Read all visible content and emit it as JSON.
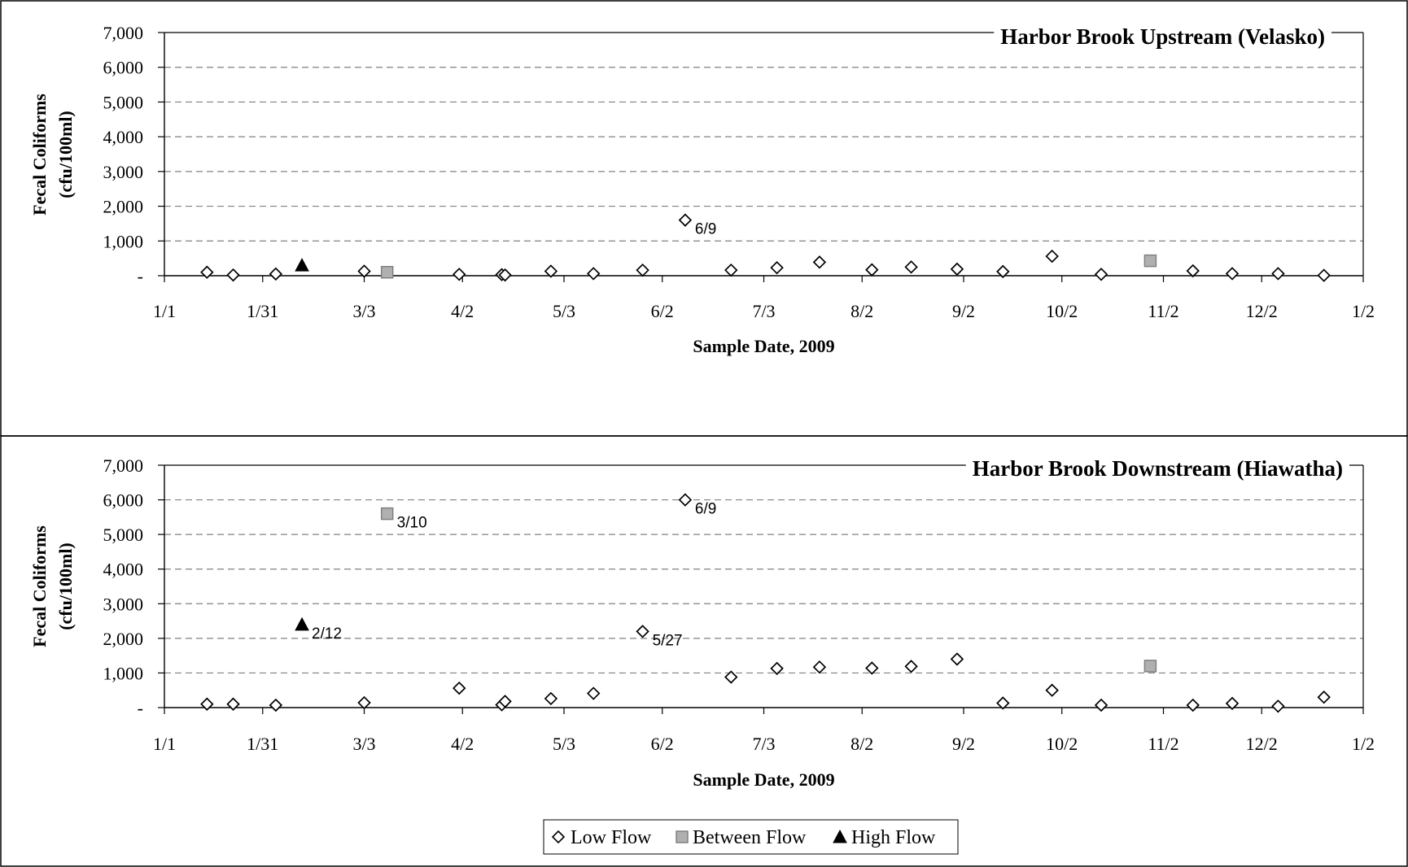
{
  "legend": [
    {
      "name": "Low Flow",
      "marker": "diamond"
    },
    {
      "name": "Between Flow",
      "marker": "square"
    },
    {
      "name": "High Flow",
      "marker": "triangle"
    }
  ],
  "colors": {
    "low": "#ffffff",
    "between": "#b0b0b0",
    "high": "#000000",
    "grid": "#808080"
  },
  "chart_data": [
    {
      "type": "scatter",
      "title": "Harbor Brook Upstream (Velasko)",
      "xlabel": "Sample Date, 2009",
      "ylabel_lines": [
        "Fecal Coliforms",
        "(cfu/100ml)"
      ],
      "xlim": [
        "2009-01-01",
        "2010-01-02"
      ],
      "ylim": [
        0,
        7000
      ],
      "yticks": [
        0,
        1000,
        2000,
        3000,
        4000,
        5000,
        6000,
        7000
      ],
      "ytick_labels": [
        "-",
        "1,000",
        "2,000",
        "3,000",
        "4,000",
        "5,000",
        "6,000",
        "7,000"
      ],
      "xticks": [
        "2009-01-01",
        "2009-01-31",
        "2009-03-03",
        "2009-04-02",
        "2009-05-03",
        "2009-06-02",
        "2009-07-03",
        "2009-08-02",
        "2009-09-02",
        "2009-10-02",
        "2009-11-02",
        "2009-12-02",
        "2010-01-02"
      ],
      "xtick_labels": [
        "1/1",
        "1/31",
        "3/3",
        "4/2",
        "5/3",
        "6/2",
        "7/3",
        "8/2",
        "9/2",
        "10/2",
        "11/2",
        "12/2",
        "1/2"
      ],
      "grid": "horizontal dashed",
      "series": [
        {
          "name": "Low Flow",
          "points": [
            {
              "x": "2009-01-14",
              "y": 100
            },
            {
              "x": "2009-01-22",
              "y": 20
            },
            {
              "x": "2009-02-04",
              "y": 50
            },
            {
              "x": "2009-03-03",
              "y": 130
            },
            {
              "x": "2009-04-01",
              "y": 40
            },
            {
              "x": "2009-04-14",
              "y": 30
            },
            {
              "x": "2009-04-15",
              "y": 20
            },
            {
              "x": "2009-04-29",
              "y": 130
            },
            {
              "x": "2009-05-12",
              "y": 60
            },
            {
              "x": "2009-05-27",
              "y": 160
            },
            {
              "x": "2009-06-09",
              "y": 1600,
              "label": "6/9"
            },
            {
              "x": "2009-06-23",
              "y": 160
            },
            {
              "x": "2009-07-07",
              "y": 230
            },
            {
              "x": "2009-07-20",
              "y": 390
            },
            {
              "x": "2009-08-05",
              "y": 170
            },
            {
              "x": "2009-08-17",
              "y": 250
            },
            {
              "x": "2009-08-31",
              "y": 190
            },
            {
              "x": "2009-09-14",
              "y": 120
            },
            {
              "x": "2009-09-29",
              "y": 560
            },
            {
              "x": "2009-10-14",
              "y": 40
            },
            {
              "x": "2009-11-11",
              "y": 140
            },
            {
              "x": "2009-11-23",
              "y": 60
            },
            {
              "x": "2009-12-07",
              "y": 60
            },
            {
              "x": "2009-12-21",
              "y": 10
            }
          ]
        },
        {
          "name": "Between Flow",
          "points": [
            {
              "x": "2009-03-10",
              "y": 100
            },
            {
              "x": "2009-10-29",
              "y": 430
            }
          ]
        },
        {
          "name": "High Flow",
          "points": [
            {
              "x": "2009-02-12",
              "y": 300
            }
          ]
        }
      ]
    },
    {
      "type": "scatter",
      "title": "Harbor Brook Downstream (Hiawatha)",
      "xlabel": "Sample Date, 2009",
      "ylabel_lines": [
        "Fecal Coliforms",
        "(cfu/100ml)"
      ],
      "xlim": [
        "2009-01-01",
        "2010-01-02"
      ],
      "ylim": [
        0,
        7000
      ],
      "yticks": [
        0,
        1000,
        2000,
        3000,
        4000,
        5000,
        6000,
        7000
      ],
      "ytick_labels": [
        "-",
        "1,000",
        "2,000",
        "3,000",
        "4,000",
        "5,000",
        "6,000",
        "7,000"
      ],
      "xticks": [
        "2009-01-01",
        "2009-01-31",
        "2009-03-03",
        "2009-04-02",
        "2009-05-03",
        "2009-06-02",
        "2009-07-03",
        "2009-08-02",
        "2009-09-02",
        "2009-10-02",
        "2009-11-02",
        "2009-12-02",
        "2010-01-02"
      ],
      "xtick_labels": [
        "1/1",
        "1/31",
        "3/3",
        "4/2",
        "5/3",
        "6/2",
        "7/3",
        "8/2",
        "9/2",
        "10/2",
        "11/2",
        "12/2",
        "1/2"
      ],
      "grid": "horizontal dashed",
      "series": [
        {
          "name": "Low Flow",
          "points": [
            {
              "x": "2009-01-14",
              "y": 100
            },
            {
              "x": "2009-01-22",
              "y": 100
            },
            {
              "x": "2009-02-04",
              "y": 70
            },
            {
              "x": "2009-03-03",
              "y": 140
            },
            {
              "x": "2009-04-01",
              "y": 560
            },
            {
              "x": "2009-04-14",
              "y": 80
            },
            {
              "x": "2009-04-15",
              "y": 180
            },
            {
              "x": "2009-04-29",
              "y": 260
            },
            {
              "x": "2009-05-12",
              "y": 410
            },
            {
              "x": "2009-05-27",
              "y": 2200,
              "label": "5/27"
            },
            {
              "x": "2009-06-09",
              "y": 6000,
              "label": "6/9"
            },
            {
              "x": "2009-06-23",
              "y": 880
            },
            {
              "x": "2009-07-07",
              "y": 1130
            },
            {
              "x": "2009-07-20",
              "y": 1170
            },
            {
              "x": "2009-08-05",
              "y": 1140
            },
            {
              "x": "2009-08-17",
              "y": 1190
            },
            {
              "x": "2009-08-31",
              "y": 1400
            },
            {
              "x": "2009-09-14",
              "y": 130
            },
            {
              "x": "2009-09-29",
              "y": 500
            },
            {
              "x": "2009-10-14",
              "y": 70
            },
            {
              "x": "2009-11-11",
              "y": 70
            },
            {
              "x": "2009-11-23",
              "y": 120
            },
            {
              "x": "2009-12-07",
              "y": 40
            },
            {
              "x": "2009-12-21",
              "y": 300
            }
          ]
        },
        {
          "name": "Between Flow",
          "points": [
            {
              "x": "2009-03-10",
              "y": 5600,
              "label": "3/10"
            },
            {
              "x": "2009-10-29",
              "y": 1200
            }
          ]
        },
        {
          "name": "High Flow",
          "points": [
            {
              "x": "2009-02-12",
              "y": 2400,
              "label": "2/12"
            }
          ]
        }
      ]
    }
  ]
}
